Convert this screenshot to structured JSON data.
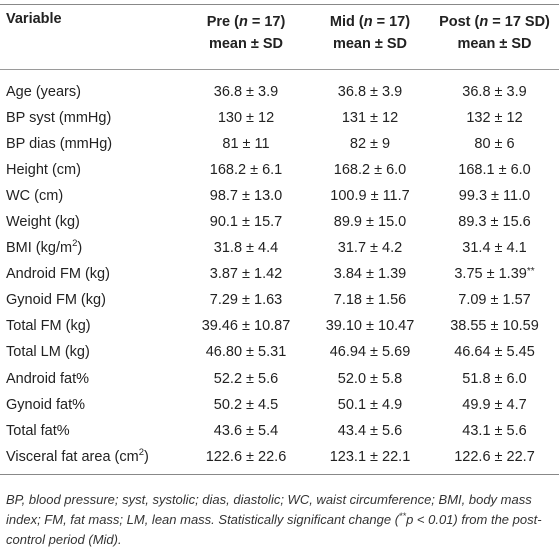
{
  "columns": {
    "variable": "Variable",
    "pre": {
      "pre": "Pre (",
      "n": "n",
      "post": " = 17)",
      "sub": "mean ± SD"
    },
    "mid": {
      "pre": "Mid (",
      "n": "n",
      "post": " = 17)",
      "sub": "mean ± SD"
    },
    "post": {
      "pre": "Post (",
      "n": "n",
      "post": " = 17 SD)",
      "sub": "mean ± SD"
    }
  },
  "rows": [
    {
      "label": "Age (years)",
      "pre": "36.8 ± 3.9",
      "mid": "36.8 ± 3.9",
      "post": "36.8 ± 3.9"
    },
    {
      "label": "BP syst (mmHg)",
      "pre": "130 ± 12",
      "mid": "131 ± 12",
      "post": "132 ± 12"
    },
    {
      "label": "BP dias (mmHg)",
      "pre": "81 ± 11",
      "mid": "82 ± 9",
      "post": "80 ± 6"
    },
    {
      "label": "Height (cm)",
      "pre": "168.2 ± 6.1",
      "mid": "168.2 ± 6.0",
      "post": "168.1 ± 6.0"
    },
    {
      "label": "WC (cm)",
      "pre": "98.7 ± 13.0",
      "mid": "100.9 ± 11.7",
      "post": "99.3 ± 11.0"
    },
    {
      "label": "Weight (kg)",
      "pre": "90.1 ± 15.7",
      "mid": "89.9 ± 15.0",
      "post": "89.3 ± 15.6"
    },
    {
      "label": "BMI (kg/m",
      "label_sup": "2",
      "label_end": ")",
      "pre": "31.8 ± 4.4",
      "mid": "31.7 ± 4.2",
      "post": "31.4 ± 4.1"
    },
    {
      "label": "Android FM (kg)",
      "pre": "3.87 ± 1.42",
      "mid": "3.84 ± 1.39",
      "post": "3.75 ± 1.39",
      "post_mark": "**"
    },
    {
      "label": "Gynoid FM (kg)",
      "pre": "7.29 ± 1.63",
      "mid": "7.18 ± 1.56",
      "post": "7.09 ± 1.57"
    },
    {
      "label": "Total FM (kg)",
      "pre": "39.46 ± 10.87",
      "mid": "39.10 ± 10.47",
      "post": "38.55 ± 10.59"
    },
    {
      "label": "Total LM (kg)",
      "pre": "46.80 ± 5.31",
      "mid": "46.94 ± 5.69",
      "post": "46.64 ± 5.45"
    },
    {
      "label": "Android fat%",
      "pre": "52.2 ± 5.6",
      "mid": "52.0 ± 5.8",
      "post": "51.8 ± 6.0"
    },
    {
      "label": "Gynoid fat%",
      "pre": "50.2 ± 4.5",
      "mid": "50.1 ± 4.9",
      "post": "49.9 ± 4.7"
    },
    {
      "label": "Total fat%",
      "pre": "43.6 ± 5.4",
      "mid": "43.4 ± 5.6",
      "post": "43.1 ± 5.6"
    },
    {
      "label": "Visceral fat area (cm",
      "label_sup": "2",
      "label_end": ")",
      "pre": "122.6 ± 22.6",
      "mid": "123.1 ± 22.1",
      "post": "122.6 ± 22.7"
    }
  ],
  "footnote": {
    "text1": "BP, blood pressure; syst, systolic; dias, diastolic; WC, waist circumference; BMI, body mass index; FM, fat mass; LM, lean mass. Statistically significant change (",
    "mark": "**",
    "text2": "p < 0.01) from the post-control period (Mid)."
  }
}
